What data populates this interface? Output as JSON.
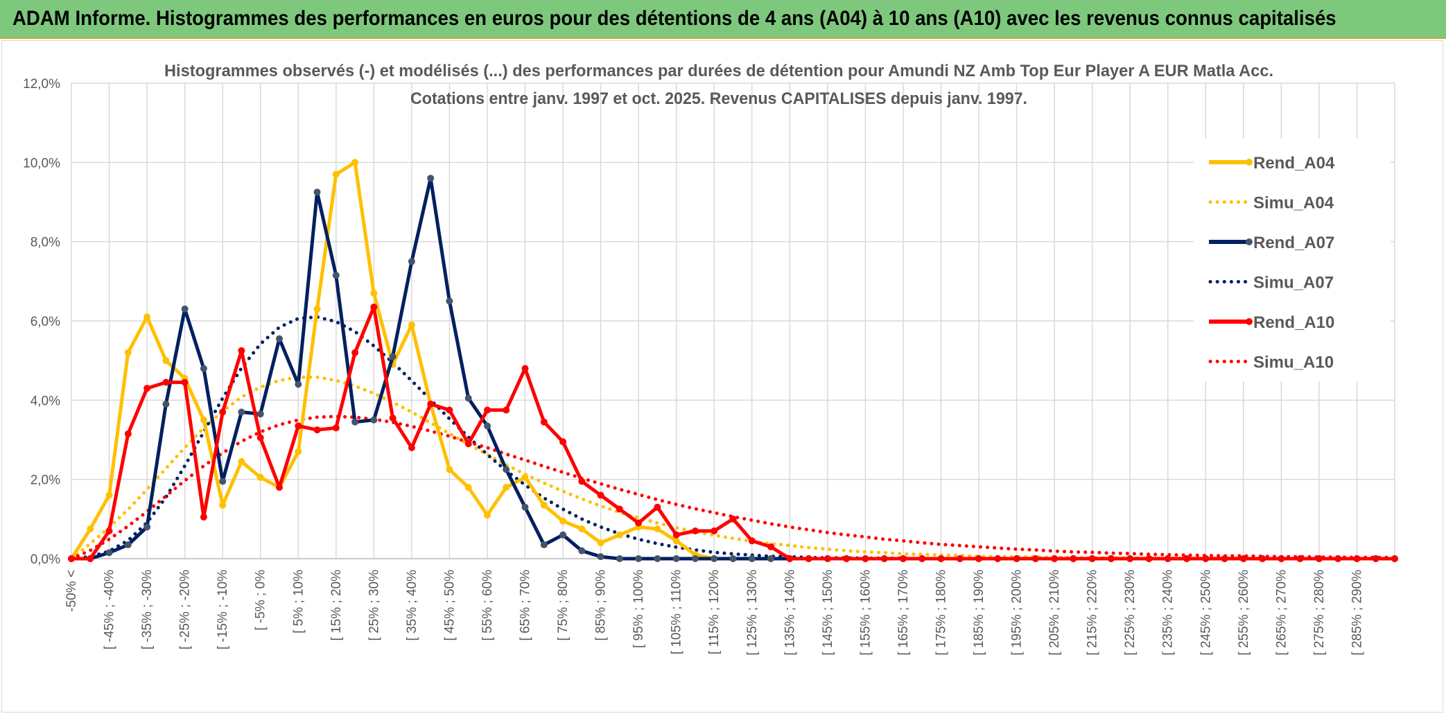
{
  "banner": {
    "title": "ADAM Informe. Histogrammes des performances en euros pour des détentions de 4 ans (A04) à 10 ans (A10) avec les revenus connus capitalisés"
  },
  "colors": {
    "banner_bg": "#7dc87d",
    "a04": "#ffc000",
    "a07": "#002060",
    "a10": "#ff0000",
    "marker_a07": "#44546a"
  },
  "chart_data": {
    "type": "line",
    "title": "Histogrammes observés (-) et modélisés (...) des performances par durées de détention pour Amundi NZ Amb Top Eur Player A EUR Matla Acc.",
    "subtitle": "Cotations entre janv. 1997 et oct. 2025. Revenus CAPITALISES depuis janv. 1997.",
    "xlabel": "",
    "ylabel": "",
    "ylim": [
      0,
      12
    ],
    "y_ticks": [
      "0,0%",
      "2,0%",
      "4,0%",
      "6,0%",
      "8,0%",
      "10,0%",
      "12,0%"
    ],
    "grid": true,
    "legend_position": "right",
    "x_tick_labels": [
      "-50% <",
      "[ -45% ; -40%",
      "[ -35% ; -30%",
      "[ -25% ; -20%",
      "[ -15% ; -10%",
      "[ -5% ; 0%",
      "[ 5% ; 10%",
      "[ 15% ; 20%",
      "[ 25% ; 30%",
      "[ 35% ; 40%",
      "[ 45% ; 50%",
      "[ 55% ; 60%",
      "[ 65% ; 70%",
      "[ 75% ; 80%",
      "[ 85% ; 90%",
      "[ 95% ; 100%",
      "[ 105% ; 110%",
      "[ 115% ; 120%",
      "[ 125% ; 130%",
      "[ 135% ; 140%",
      "[ 145% ; 150%",
      "[ 155% ; 160%",
      "[ 165% ; 170%",
      "[ 175% ; 180%",
      "[ 185% ; 190%",
      "[ 195% ; 200%",
      "[ 205% ; 210%",
      "[ 215% ; 220%",
      "[ 225% ; 230%",
      "[ 235% ; 240%",
      "[ 245% ; 250%",
      "[ 255% ; 260%",
      "[ 265% ; 270%",
      "[ 275% ; 280%",
      "[ 285% ; 290%"
    ],
    "categories_count": 71,
    "series": [
      {
        "name": "Rend_A04",
        "style": "solid",
        "color": "#ffc000",
        "values": [
          0,
          0.75,
          1.6,
          5.2,
          6.1,
          5.0,
          4.55,
          3.5,
          1.35,
          2.45,
          2.05,
          1.8,
          2.7,
          6.3,
          9.7,
          10.0,
          6.7,
          4.9,
          5.9,
          3.9,
          2.25,
          1.8,
          1.1,
          1.8,
          2.05,
          1.35,
          0.95,
          0.75,
          0.4,
          0.6,
          0.8,
          0.75,
          0.45,
          0.1,
          0,
          0,
          0,
          0,
          0,
          0,
          0,
          0,
          0,
          0,
          0,
          0,
          0,
          0,
          0,
          0,
          0,
          0,
          0,
          0,
          0,
          0,
          0,
          0,
          0,
          0,
          0,
          0,
          0,
          0,
          0,
          0,
          0,
          0,
          0,
          0,
          0
        ]
      },
      {
        "name": "Simu_A04",
        "style": "dotted",
        "color": "#ffc000",
        "values": [
          0,
          0.38,
          0.79,
          1.24,
          1.75,
          2.28,
          2.8,
          3.3,
          3.72,
          4.08,
          4.33,
          4.5,
          4.58,
          4.58,
          4.5,
          4.36,
          4.17,
          3.95,
          3.7,
          3.43,
          3.16,
          2.89,
          2.63,
          2.37,
          2.13,
          1.91,
          1.7,
          1.51,
          1.33,
          1.17,
          1.03,
          0.9,
          0.78,
          0.68,
          0.59,
          0.51,
          0.44,
          0.38,
          0.33,
          0.28,
          0.24,
          0.2,
          0.17,
          0.15,
          0.12,
          0.11,
          0.09,
          0.08,
          0.06,
          0.05,
          0.05,
          0.04,
          0.03,
          0.03,
          0.02,
          0.02,
          0.02,
          0.01,
          0.01,
          0.01,
          0.01,
          0.01,
          0.01,
          0,
          0,
          0,
          0,
          0,
          0,
          0,
          0
        ]
      },
      {
        "name": "Rend_A07",
        "style": "solid",
        "color": "#002060",
        "values": [
          0,
          0,
          0.15,
          0.35,
          0.8,
          3.9,
          6.3,
          4.8,
          1.95,
          3.7,
          3.65,
          5.55,
          4.4,
          9.25,
          7.15,
          3.45,
          3.5,
          5.1,
          7.5,
          9.6,
          6.5,
          4.05,
          3.35,
          2.25,
          1.3,
          0.35,
          0.6,
          0.2,
          0.05,
          0,
          0,
          0,
          0,
          0,
          0,
          0,
          0,
          0,
          0,
          0,
          0,
          0,
          0,
          0,
          0,
          0,
          0,
          0,
          0,
          0,
          0,
          0,
          0,
          0,
          0,
          0,
          0,
          0,
          0,
          0,
          0,
          0,
          0,
          0,
          0,
          0,
          0,
          0,
          0,
          0,
          0
        ]
      },
      {
        "name": "Simu_A07",
        "style": "dotted",
        "color": "#002060",
        "values": [
          0,
          0.05,
          0.19,
          0.46,
          0.91,
          1.55,
          2.34,
          3.2,
          4.05,
          4.81,
          5.42,
          5.84,
          6.06,
          6.1,
          5.98,
          5.73,
          5.37,
          4.95,
          4.49,
          4.01,
          3.53,
          3.07,
          2.63,
          2.22,
          1.86,
          1.53,
          1.25,
          1.0,
          0.8,
          0.63,
          0.49,
          0.38,
          0.29,
          0.22,
          0.16,
          0.12,
          0.09,
          0.06,
          0.05,
          0.03,
          0.02,
          0.02,
          0.01,
          0.01,
          0.01,
          0,
          0,
          0,
          0,
          0,
          0,
          0,
          0,
          0,
          0,
          0,
          0,
          0,
          0,
          0,
          0,
          0,
          0,
          0,
          0,
          0,
          0,
          0,
          0,
          0,
          0
        ]
      },
      {
        "name": "Rend_A10",
        "style": "solid",
        "color": "#ff0000",
        "values": [
          0,
          0,
          0.7,
          3.15,
          4.3,
          4.45,
          4.45,
          1.05,
          3.7,
          5.25,
          3.05,
          1.8,
          3.35,
          3.25,
          3.3,
          5.2,
          6.35,
          3.55,
          2.8,
          3.9,
          3.75,
          2.9,
          3.75,
          3.75,
          4.8,
          3.45,
          2.95,
          1.95,
          1.6,
          1.25,
          0.9,
          1.3,
          0.6,
          0.7,
          0.7,
          1.0,
          0.45,
          0.3,
          0,
          0,
          0,
          0,
          0,
          0,
          0,
          0,
          0,
          0,
          0,
          0,
          0,
          0,
          0,
          0,
          0,
          0,
          0,
          0,
          0,
          0,
          0,
          0,
          0,
          0,
          0,
          0,
          0,
          0,
          0,
          0,
          0
        ]
      },
      {
        "name": "Simu_A10",
        "style": "dotted",
        "color": "#ff0000",
        "values": [
          0,
          0.21,
          0.49,
          0.82,
          1.19,
          1.58,
          1.97,
          2.34,
          2.67,
          2.96,
          3.2,
          3.38,
          3.5,
          3.57,
          3.59,
          3.57,
          3.52,
          3.44,
          3.34,
          3.22,
          3.09,
          2.94,
          2.8,
          2.64,
          2.49,
          2.33,
          2.18,
          2.03,
          1.89,
          1.75,
          1.62,
          1.49,
          1.37,
          1.26,
          1.16,
          1.06,
          0.97,
          0.88,
          0.8,
          0.73,
          0.66,
          0.6,
          0.55,
          0.49,
          0.45,
          0.4,
          0.36,
          0.33,
          0.3,
          0.27,
          0.24,
          0.22,
          0.19,
          0.17,
          0.16,
          0.14,
          0.13,
          0.11,
          0.1,
          0.09,
          0.08,
          0.07,
          0.07,
          0.06,
          0.05,
          0.05,
          0.04,
          0.04,
          0.03,
          0.03,
          0.03
        ]
      }
    ]
  }
}
